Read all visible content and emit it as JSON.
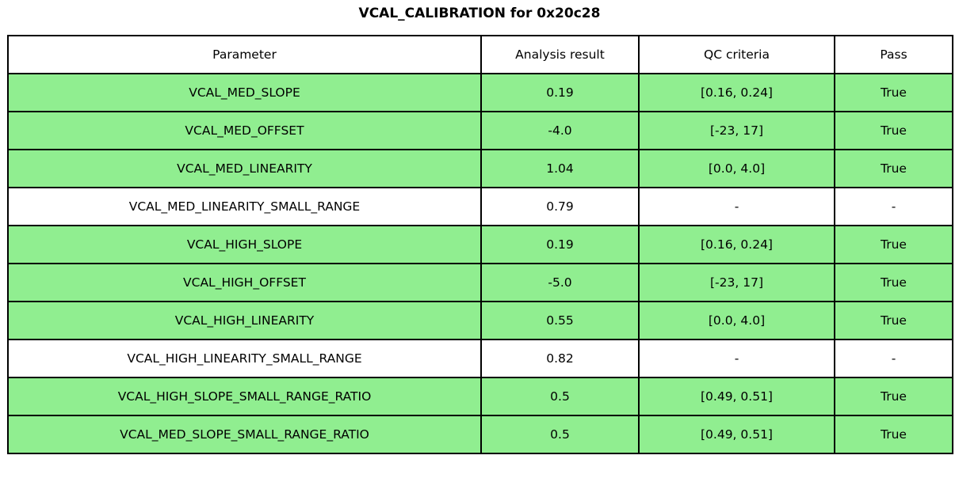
{
  "title": "VCAL_CALIBRATION for 0x20c28",
  "table": {
    "headers": [
      "Parameter",
      "Analysis result",
      "QC criteria",
      "Pass"
    ],
    "rows": [
      {
        "parameter": "VCAL_MED_SLOPE",
        "result": "0.19",
        "qc": "[0.16, 0.24]",
        "pass": "True",
        "highlight": true
      },
      {
        "parameter": "VCAL_MED_OFFSET",
        "result": "-4.0",
        "qc": "[-23, 17]",
        "pass": "True",
        "highlight": true
      },
      {
        "parameter": "VCAL_MED_LINEARITY",
        "result": "1.04",
        "qc": "[0.0, 4.0]",
        "pass": "True",
        "highlight": true
      },
      {
        "parameter": "VCAL_MED_LINEARITY_SMALL_RANGE",
        "result": "0.79",
        "qc": "-",
        "pass": "-",
        "highlight": false
      },
      {
        "parameter": "VCAL_HIGH_SLOPE",
        "result": "0.19",
        "qc": "[0.16, 0.24]",
        "pass": "True",
        "highlight": true
      },
      {
        "parameter": "VCAL_HIGH_OFFSET",
        "result": "-5.0",
        "qc": "[-23, 17]",
        "pass": "True",
        "highlight": true
      },
      {
        "parameter": "VCAL_HIGH_LINEARITY",
        "result": "0.55",
        "qc": "[0.0, 4.0]",
        "pass": "True",
        "highlight": true
      },
      {
        "parameter": "VCAL_HIGH_LINEARITY_SMALL_RANGE",
        "result": "0.82",
        "qc": "-",
        "pass": "-",
        "highlight": false
      },
      {
        "parameter": "VCAL_HIGH_SLOPE_SMALL_RANGE_RATIO",
        "result": "0.5",
        "qc": "[0.49, 0.51]",
        "pass": "True",
        "highlight": true
      },
      {
        "parameter": "VCAL_MED_SLOPE_SMALL_RANGE_RATIO",
        "result": "0.5",
        "qc": "[0.49, 0.51]",
        "pass": "True",
        "highlight": true
      }
    ]
  },
  "colors": {
    "pass_row_bg": "#90EE90",
    "neutral_row_bg": "#FFFFFF",
    "border": "#000000"
  },
  "chart_data": {
    "type": "table",
    "title": "VCAL_CALIBRATION for 0x20c28",
    "columns": [
      "Parameter",
      "Analysis result",
      "QC criteria",
      "Pass"
    ],
    "rows": [
      [
        "VCAL_MED_SLOPE",
        0.19,
        "[0.16, 0.24]",
        "True"
      ],
      [
        "VCAL_MED_OFFSET",
        -4.0,
        "[-23, 17]",
        "True"
      ],
      [
        "VCAL_MED_LINEARITY",
        1.04,
        "[0.0, 4.0]",
        "True"
      ],
      [
        "VCAL_MED_LINEARITY_SMALL_RANGE",
        0.79,
        "-",
        "-"
      ],
      [
        "VCAL_HIGH_SLOPE",
        0.19,
        "[0.16, 0.24]",
        "True"
      ],
      [
        "VCAL_HIGH_OFFSET",
        -5.0,
        "[-23, 17]",
        "True"
      ],
      [
        "VCAL_HIGH_LINEARITY",
        0.55,
        "[0.0, 4.0]",
        "True"
      ],
      [
        "VCAL_HIGH_LINEARITY_SMALL_RANGE",
        0.82,
        "-",
        "-"
      ],
      [
        "VCAL_HIGH_SLOPE_SMALL_RANGE_RATIO",
        0.5,
        "[0.49, 0.51]",
        "True"
      ],
      [
        "VCAL_MED_SLOPE_SMALL_RANGE_RATIO",
        0.5,
        "[0.49, 0.51]",
        "True"
      ]
    ],
    "row_highlight_color": "#90EE90",
    "highlighted_rows": [
      0,
      1,
      2,
      4,
      5,
      6,
      8,
      9
    ]
  }
}
